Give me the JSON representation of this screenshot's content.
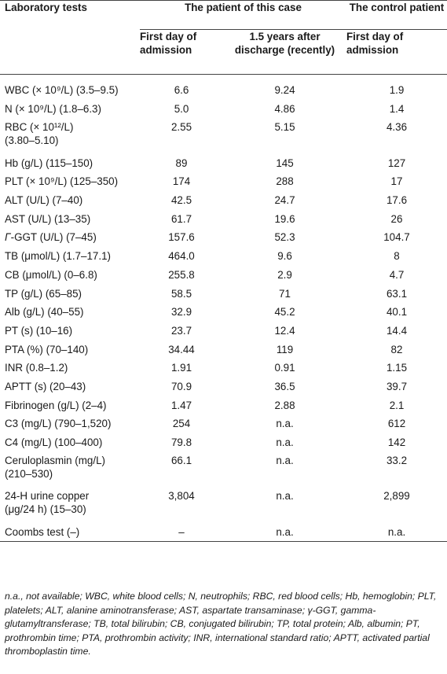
{
  "header": {
    "col_test": "Laboratory tests",
    "group_case": "The patient of this case",
    "group_control": "The control patient",
    "sub_case_first_line1": "First day of",
    "sub_case_first_line2": "admission",
    "sub_case_recent_line1": "1.5 years after",
    "sub_case_recent_line2": "discharge (recently)",
    "sub_control_line1": "First day of",
    "sub_control_line2": "admission"
  },
  "rows": [
    {
      "test_line1": "WBC (× 10⁹/L) (3.5–9.5)",
      "test_line2": "",
      "v1": "6.6",
      "v2": "9.24",
      "v3": "1.9"
    },
    {
      "test_line1": "N (× 10⁹/L) (1.8–6.3)",
      "test_line2": "",
      "v1": "5.0",
      "v2": "4.86",
      "v3": "1.4"
    },
    {
      "test_line1": "RBC (× 10¹²/L)",
      "test_line2": "(3.80–5.10)",
      "v1": "2.55",
      "v2": "5.15",
      "v3": "4.36"
    },
    {
      "test_line1": "Hb (g/L) (115–150)",
      "test_line2": "",
      "v1": "89",
      "v2": "145",
      "v3": "127"
    },
    {
      "test_line1": "PLT (× 10⁹/L) (125–350)",
      "test_line2": "",
      "v1": "174",
      "v2": "288",
      "v3": "17"
    },
    {
      "test_line1": "ALT (U/L) (7–40)",
      "test_line2": "",
      "v1": "42.5",
      "v2": "24.7",
      "v3": "17.6"
    },
    {
      "test_line1": "AST (U/L) (13–35)",
      "test_line2": "",
      "v1": "61.7",
      "v2": "19.6",
      "v3": "26"
    },
    {
      "test_line1": "Γ-GGT (U/L) (7–45)",
      "test_line2": "",
      "v1": "157.6",
      "v2": "52.3",
      "v3": "104.7"
    },
    {
      "test_line1": "TB (μmol/L) (1.7–17.1)",
      "test_line2": "",
      "v1": "464.0",
      "v2": "9.6",
      "v3": "8"
    },
    {
      "test_line1": "CB (μmol/L) (0–6.8)",
      "test_line2": "",
      "v1": "255.8",
      "v2": "2.9",
      "v3": "4.7"
    },
    {
      "test_line1": "TP (g/L) (65–85)",
      "test_line2": "",
      "v1": "58.5",
      "v2": "71",
      "v3": "63.1"
    },
    {
      "test_line1": "Alb (g/L) (40–55)",
      "test_line2": "",
      "v1": "32.9",
      "v2": "45.2",
      "v3": "40.1"
    },
    {
      "test_line1": "PT (s) (10–16)",
      "test_line2": "",
      "v1": "23.7",
      "v2": "12.4",
      "v3": "14.4"
    },
    {
      "test_line1": "PTA (%) (70–140)",
      "test_line2": "",
      "v1": "34.44",
      "v2": "119",
      "v3": "82"
    },
    {
      "test_line1": "INR (0.8–1.2)",
      "test_line2": "",
      "v1": "1.91",
      "v2": "0.91",
      "v3": "1.15"
    },
    {
      "test_line1": "APTT (s) (20–43)",
      "test_line2": "",
      "v1": "70.9",
      "v2": "36.5",
      "v3": "39.7"
    },
    {
      "test_line1": "Fibrinogen (g/L) (2–4)",
      "test_line2": "",
      "v1": "1.47",
      "v2": "2.88",
      "v3": "2.1"
    },
    {
      "test_line1": "C3 (mg/L) (790–1,520)",
      "test_line2": "",
      "v1": "254",
      "v2": "n.a.",
      "v3": "612"
    },
    {
      "test_line1": "C4 (mg/L) (100–400)",
      "test_line2": "",
      "v1": "79.8",
      "v2": "n.a.",
      "v3": "142"
    },
    {
      "test_line1": "Ceruloplasmin (mg/L)",
      "test_line2": "(210–530)",
      "v1": "66.1",
      "v2": "n.a.",
      "v3": "33.2"
    },
    {
      "test_line1": "24-H urine copper",
      "test_line2": "(μg/24 h) (15–30)",
      "v1": "3,804",
      "v2": "n.a.",
      "v3": "2,899"
    },
    {
      "test_line1": "Coombs test (–)",
      "test_line2": "",
      "v1": "–",
      "v2": "n.a.",
      "v3": "n.a."
    }
  ],
  "footnote": "n.a., not available; WBC, white blood cells; N, neutrophils; RBC, red blood cells; Hb, hemoglobin; PLT, platelets; ALT, alanine aminotransferase; AST, aspartate transaminase; γ-GGT, gamma-glutamyltransferase; TB, total bilirubin; CB, conjugated bilirubin; TP, total protein; Alb, albumin; PT, prothrombin time; PTA, prothrombin activity; INR, international standard ratio; APTT, activated partial thromboplastin time."
}
